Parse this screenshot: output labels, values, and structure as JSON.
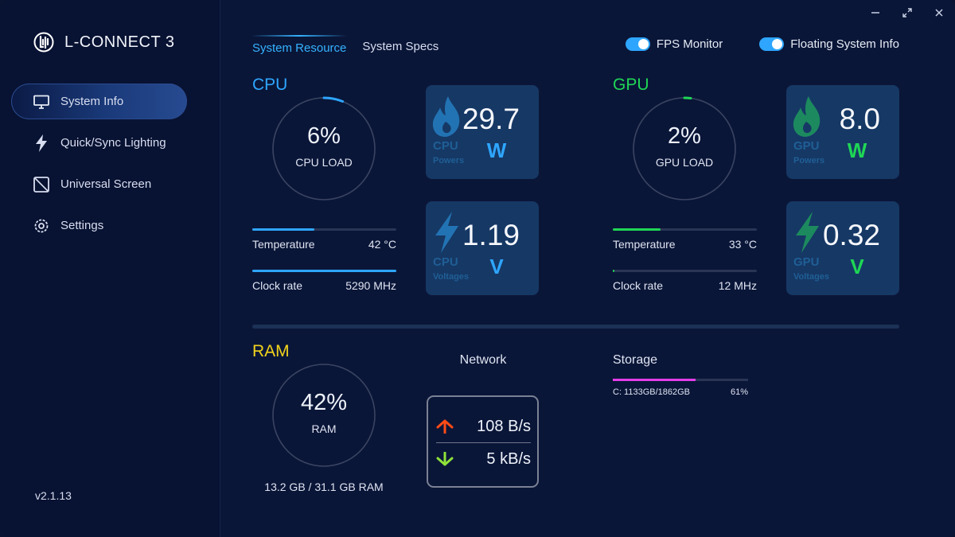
{
  "app": {
    "brand_name": "L-CONNECT 3",
    "version": "v2.1.13"
  },
  "sidebar": {
    "items": [
      {
        "label": "System Info",
        "icon": "monitor-icon",
        "active": true
      },
      {
        "label": "Quick/Sync Lighting",
        "icon": "lightning-icon"
      },
      {
        "label": "Universal Screen",
        "icon": "screen-icon"
      },
      {
        "label": "Settings",
        "icon": "gear-icon"
      }
    ]
  },
  "window_controls": [
    "minimize-icon",
    "maximize-icon",
    "close-icon"
  ],
  "tabs": [
    {
      "label": "System Resource",
      "active": true
    },
    {
      "label": "System Specs",
      "active": false
    }
  ],
  "toggles": [
    {
      "label": "FPS Monitor",
      "on": true
    },
    {
      "label": "Floating System Info",
      "on": true
    }
  ],
  "colors": {
    "cpu": "#2ea6ff",
    "gpu": "#1fd655",
    "ram": "#f2d31b",
    "storage": "#e33de8",
    "upload": "#ff4b16",
    "download": "#8ee23a"
  },
  "cpu": {
    "title": "CPU",
    "load_value": "6%",
    "load_fraction": 0.06,
    "load_label": "CPU LOAD",
    "temperature": {
      "label": "Temperature",
      "value": "42 °C",
      "fraction": 0.43
    },
    "clock": {
      "label": "Clock rate",
      "value": "5290 MHz",
      "fraction": 1.0
    },
    "power": {
      "value": "29.7",
      "unit": "W",
      "name": "CPU",
      "sub": "Powers"
    },
    "voltage": {
      "value": "1.19",
      "unit": "V",
      "name": "CPU",
      "sub": "Voltages"
    }
  },
  "gpu": {
    "title": "GPU",
    "load_value": "2%",
    "load_fraction": 0.02,
    "load_label": "GPU LOAD",
    "temperature": {
      "label": "Temperature",
      "value": "33 °C",
      "fraction": 0.33
    },
    "clock": {
      "label": "Clock rate",
      "value": "12 MHz",
      "fraction": 0.003
    },
    "power": {
      "value": "8.0",
      "unit": "W",
      "name": "GPU",
      "sub": "Powers"
    },
    "voltage": {
      "value": "0.32",
      "unit": "V",
      "name": "GPU",
      "sub": "Voltages"
    }
  },
  "ram": {
    "title": "RAM",
    "load_value": "42%",
    "load_fraction": 0.42,
    "load_label": "RAM",
    "usage": "13.2 GB / 31.1 GB RAM"
  },
  "network": {
    "title": "Network",
    "upload": "108 B/s",
    "download": "5 kB/s"
  },
  "storage": {
    "title": "Storage",
    "drive": "C: 1133GB/1862GB",
    "percent": "61%",
    "fraction": 0.61
  }
}
